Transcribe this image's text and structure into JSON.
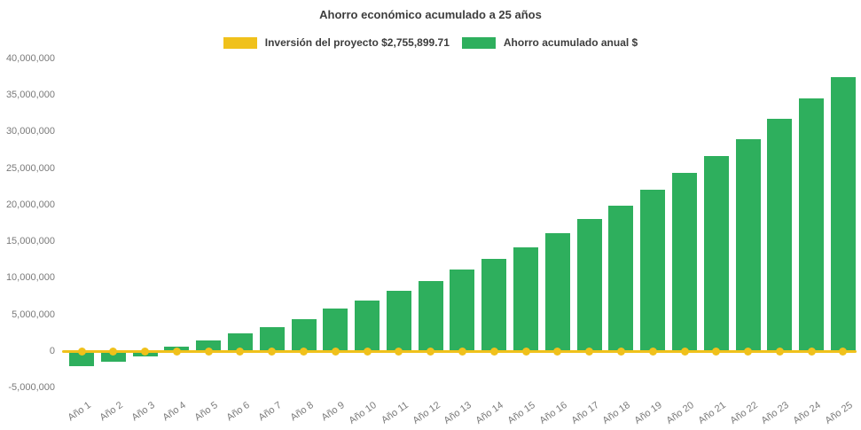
{
  "chart_data": {
    "type": "bar",
    "title": "Ahorro económico acumulado a 25 años",
    "categories": [
      "Año 1",
      "Año 2",
      "Año 3",
      "Año 4",
      "Año 5",
      "Año 6",
      "Año 7",
      "Año 8",
      "Año 9",
      "Año 10",
      "Año 11",
      "Año 12",
      "Año 13",
      "Año 14",
      "Año 15",
      "Año 16",
      "Año 17",
      "Año 18",
      "Año 19",
      "Año 20",
      "Año 21",
      "Año 22",
      "Año 23",
      "Año 24",
      "Año 25"
    ],
    "series": [
      {
        "name": "Inversión del proyecto $2,755,899.71",
        "type": "line",
        "color": "#F0C11B",
        "marker": "circle",
        "plotted_at": 0
      },
      {
        "name": "Ahorro acumulado anual $",
        "type": "bar",
        "color": "#2EAF5D",
        "values": [
          -2100000,
          -1500000,
          -700000,
          550000,
          1400000,
          2400000,
          3250000,
          4400000,
          5850000,
          6900000,
          8250000,
          9600000,
          11100000,
          12600000,
          14200000,
          16100000,
          18000000,
          19900000,
          22000000,
          24300000,
          26600000,
          29000000,
          31700000,
          34500000,
          37400000
        ]
      }
    ],
    "ylim": [
      -5000000,
      40000000
    ],
    "ytick_step": 5000000,
    "ytick_labels": [
      "40,000,000",
      "35,000,000",
      "30,000,000",
      "25,000,000",
      "20,000,000",
      "15,000,000",
      "10,000,000",
      "5,000,000",
      "0",
      "-5,000,000"
    ],
    "xlabel": "",
    "ylabel": "",
    "grid": false,
    "legend_position": "top-center",
    "background_color": "#FFFFFF",
    "title_color": "#3D3D3D",
    "axis_label_color": "#7A7A7A"
  }
}
